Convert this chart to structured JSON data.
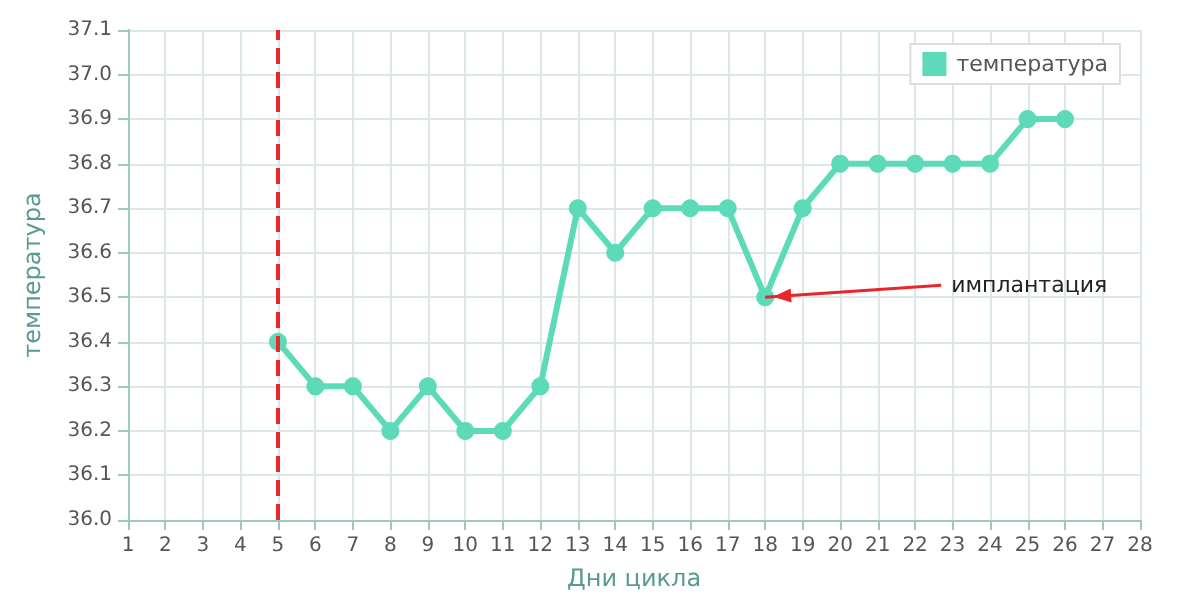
{
  "chart_data": {
    "type": "line",
    "xlabel": "Дни цикла",
    "ylabel": "температура",
    "x": [
      5,
      6,
      7,
      8,
      9,
      10,
      11,
      12,
      13,
      14,
      15,
      16,
      17,
      18,
      19,
      20,
      21,
      22,
      23,
      24,
      25,
      26
    ],
    "series": [
      {
        "name": "температура",
        "color": "#5ddbb8",
        "values": [
          36.4,
          36.3,
          36.3,
          36.2,
          36.3,
          36.2,
          36.2,
          36.3,
          36.7,
          36.6,
          36.7,
          36.7,
          36.7,
          36.5,
          36.7,
          36.8,
          36.8,
          36.8,
          36.8,
          36.8,
          36.9,
          36.9
        ]
      }
    ],
    "xlim": [
      1,
      28
    ],
    "xticks": [
      1,
      2,
      3,
      4,
      5,
      6,
      7,
      8,
      9,
      10,
      11,
      12,
      13,
      14,
      15,
      16,
      17,
      18,
      19,
      20,
      21,
      22,
      23,
      24,
      25,
      26,
      27,
      28
    ],
    "ylim": [
      36.0,
      37.1
    ],
    "yticks": [
      {
        "value": 36.0,
        "label": "36.0"
      },
      {
        "value": 36.1,
        "label": "36.1"
      },
      {
        "value": 36.2,
        "label": "36.2"
      },
      {
        "value": 36.3,
        "label": "36.3"
      },
      {
        "value": 36.4,
        "label": "36.4"
      },
      {
        "value": 36.5,
        "label": "36.5"
      },
      {
        "value": 36.6,
        "label": "36.6"
      },
      {
        "value": 36.7,
        "label": "36.7"
      },
      {
        "value": 36.8,
        "label": "36.8"
      },
      {
        "value": 36.9,
        "label": "36.9"
      },
      {
        "value": 37.0,
        "label": "37.0"
      },
      {
        "value": 37.1,
        "label": "37.1"
      }
    ],
    "ref_lines": [
      {
        "axis": "x",
        "value": 5,
        "color": "#e8262c",
        "line_style": "dashed"
      }
    ],
    "annotations": [
      {
        "text": "имплантация",
        "x": 18,
        "y": 36.5
      }
    ],
    "grid": true,
    "legend": "top right",
    "marker": "circle",
    "line_style": "solid"
  }
}
